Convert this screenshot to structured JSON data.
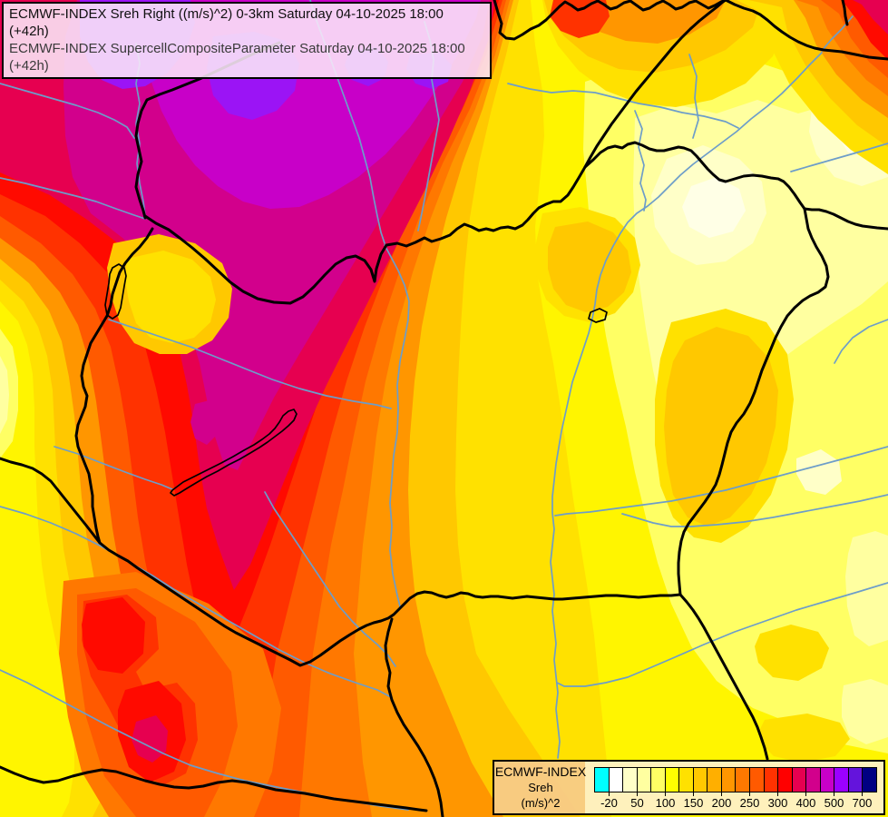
{
  "header": {
    "line1": "ECMWF-INDEX Sreh Right ((m/s)^2) 0-3km Saturday 04-10-2025 18:00 (+42h)",
    "line2": "ECMWF-INDEX SupercellCompositeParameter Saturday 04-10-2025 18:00 (+42h)"
  },
  "legend": {
    "title": "ECMWF-INDEX",
    "parameter": "Sreh",
    "unit": "(m/s)^2",
    "ticks": [
      "-20",
      "50",
      "100",
      "150",
      "200",
      "250",
      "300",
      "400",
      "500",
      "700"
    ],
    "tick_boundaries": [
      1,
      3,
      5,
      7,
      9,
      11,
      13,
      15,
      17,
      19
    ],
    "colors": [
      "#00FFFF",
      "#FFFFFF",
      "#FFFFC8",
      "#FFFFA0",
      "#FFFF64",
      "#FFFF00",
      "#FFE100",
      "#FFC800",
      "#FFAF00",
      "#FF9600",
      "#FF7800",
      "#FF5A00",
      "#FF3200",
      "#FF0000",
      "#E60050",
      "#D2008C",
      "#C800C8",
      "#9B00FF",
      "#6414DC",
      "#000082"
    ],
    "background": "#F8CB8E",
    "panel_background": "#FFFACD"
  },
  "map": {
    "palette": {
      "violet": "#9B14F5",
      "magenta": "#C800C8",
      "magentaRed": "#D2008C",
      "crimson": "#E60050",
      "red": "#FF0A00",
      "redOrange": "#FF3200",
      "orangeRed": "#FF5A00",
      "darkOrange": "#FF7800",
      "orange": "#FF9600",
      "amber": "#FFC800",
      "gold": "#FFE100",
      "yellow": "#FFF500",
      "lightYellow": "#FFFF64",
      "pale": "#FFFFA0",
      "cream": "#FFFFC8",
      "nearWhite": "#FFFFE6"
    },
    "border_color": "#000000",
    "river_color": "#6D9DC9",
    "lake_outline_color": "#000000",
    "title_box_background": "#FCE9F9"
  }
}
